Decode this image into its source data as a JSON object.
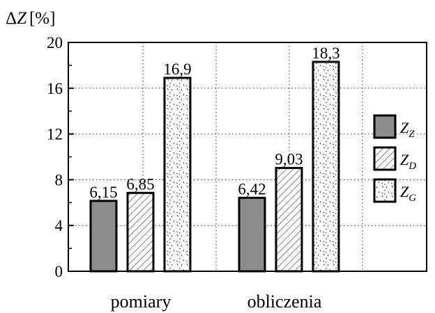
{
  "chart_data": {
    "type": "bar",
    "categories": [
      "pomiary",
      "obliczenia"
    ],
    "series": [
      {
        "name": "Z_Z",
        "values": [
          6.15,
          6.42
        ],
        "value_labels": [
          "6,15",
          "6,42"
        ],
        "pattern": "solid-gray",
        "color": "#8c8c8c"
      },
      {
        "name": "Z_D",
        "values": [
          6.85,
          9.03
        ],
        "value_labels": [
          "6,85",
          "9,03"
        ],
        "pattern": "diagonal-hatch",
        "color": "#ffffff"
      },
      {
        "name": "Z_G",
        "values": [
          16.9,
          18.3
        ],
        "value_labels": [
          "16,9",
          "18,3"
        ],
        "pattern": "speckle",
        "color": "#ffffff"
      }
    ],
    "ylabel": "ΔZ [%]",
    "ylabel_symbol": "Z",
    "ylabel_unit": "[%]",
    "ylim": [
      0,
      20
    ],
    "yticks": [
      0,
      4,
      8,
      12,
      16,
      20
    ],
    "ytick_labels": [
      "0",
      "4",
      "8",
      "12",
      "16",
      "20"
    ],
    "grid": "dotted",
    "legend": {
      "placement": "right",
      "entries": [
        {
          "symbol": "Z",
          "subscript": "Z"
        },
        {
          "symbol": "Z",
          "subscript": "D"
        },
        {
          "symbol": "Z",
          "subscript": "G"
        }
      ]
    }
  }
}
